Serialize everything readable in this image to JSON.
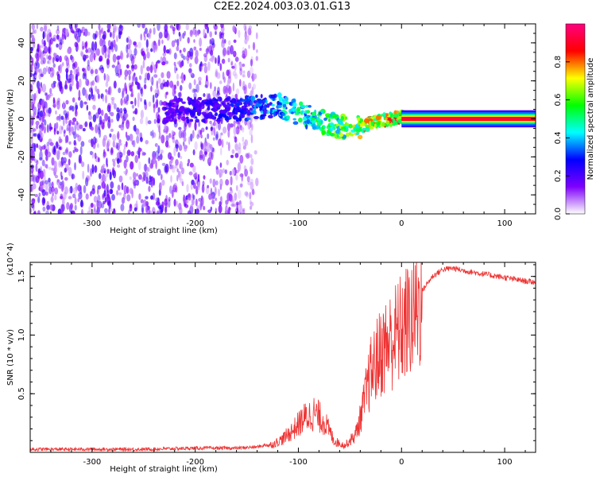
{
  "title": "C2E2.2024.003.03.01.G13",
  "chart_data": [
    {
      "type": "heatmap",
      "xlabel": "Height of straight line (km)",
      "ylabel": "Frequency (Hz)",
      "xlim": [
        -360,
        130
      ],
      "ylim": [
        -50,
        50
      ],
      "x_ticks": [
        -300,
        -200,
        -100,
        0,
        100
      ],
      "y_ticks": [
        -40,
        -20,
        0,
        20,
        40
      ],
      "colorbar": {
        "label": "Normalized spectral amplitude",
        "range": [
          0.0,
          1.0
        ],
        "ticks": [
          "0.0",
          "0.2",
          "0.4",
          "0.6",
          "0.8"
        ],
        "stops": [
          "#ffffff",
          "#7f00ff",
          "#0000ff",
          "#00ffff",
          "#00ff00",
          "#ffff00",
          "#ff0000",
          "#ff0080"
        ]
      },
      "noise_region_x": [
        -360,
        -140
      ],
      "signal_track": [
        {
          "x": -230,
          "freq": 4,
          "amp": 0.22
        },
        {
          "x": -200,
          "freq": 5,
          "amp": 0.25
        },
        {
          "x": -160,
          "freq": 5,
          "amp": 0.3
        },
        {
          "x": -140,
          "freq": 6,
          "amp": 0.38
        },
        {
          "x": -120,
          "freq": 7,
          "amp": 0.45
        },
        {
          "x": -100,
          "freq": 3,
          "amp": 0.52
        },
        {
          "x": -80,
          "freq": -1,
          "amp": 0.58
        },
        {
          "x": -60,
          "freq": -4,
          "amp": 0.65
        },
        {
          "x": -45,
          "freq": -5,
          "amp": 0.72
        },
        {
          "x": -30,
          "freq": -2,
          "amp": 0.8
        },
        {
          "x": -10,
          "freq": 0,
          "amp": 0.86
        },
        {
          "x": 0,
          "freq": 1,
          "amp": 0.9
        },
        {
          "x": 10,
          "freq": 0,
          "amp": 0.95
        },
        {
          "x": 130,
          "freq": 0,
          "amp": 0.95
        }
      ]
    },
    {
      "type": "line",
      "xlabel": "Height of straight line (km)",
      "ylabel": "SNR (10 * v/v)",
      "y_multiplier": "(x10^4)",
      "xlim": [
        -360,
        130
      ],
      "ylim": [
        0,
        1.62
      ],
      "x_ticks": [
        -300,
        -200,
        -100,
        0,
        100
      ],
      "y_ticks": [
        0.5,
        1.0,
        1.5
      ],
      "y_tick_labels": [
        "0.5",
        "1.0",
        "1.5"
      ],
      "color": "#ee3333",
      "series": [
        {
          "x": [
            -360,
            -300,
            -250,
            -200,
            -160,
            -140,
            -125,
            -115,
            -105,
            -95,
            -85,
            -75,
            -65,
            -55,
            -45,
            -40,
            -35,
            -30,
            -20,
            -10,
            0,
            10,
            20,
            30,
            40,
            50,
            60,
            80,
            100,
            120,
            130
          ],
          "y": [
            0.02,
            0.02,
            0.02,
            0.03,
            0.03,
            0.04,
            0.07,
            0.12,
            0.2,
            0.3,
            0.35,
            0.28,
            0.1,
            0.06,
            0.15,
            0.3,
            0.5,
            0.7,
            0.9,
            1.0,
            1.1,
            1.2,
            1.38,
            1.5,
            1.56,
            1.57,
            1.55,
            1.52,
            1.49,
            1.46,
            1.45
          ]
        }
      ]
    }
  ]
}
